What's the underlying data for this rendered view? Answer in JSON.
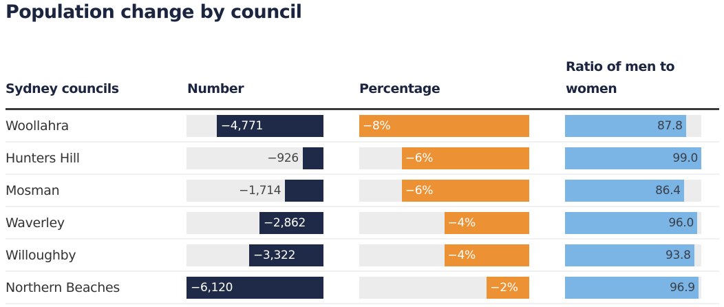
{
  "title": "Population change by council",
  "headers": {
    "council": "Sydney councils",
    "number": "Number",
    "percentage": "Percentage",
    "ratio": "Ratio of men to women"
  },
  "colors": {
    "number_bar": "#1f2a48",
    "percentage_bar": "#ec9235",
    "ratio_bar": "#7ab5e5",
    "track": "#ececec"
  },
  "rows": [
    {
      "council": "Woollahra",
      "number": -4771,
      "number_label": "−4,771",
      "percentage": -8,
      "percentage_label": "−8%",
      "ratio": 87.8,
      "ratio_label": "87.8"
    },
    {
      "council": "Hunters Hill",
      "number": -926,
      "number_label": "−926",
      "percentage": -6,
      "percentage_label": "−6%",
      "ratio": 99.0,
      "ratio_label": "99.0"
    },
    {
      "council": "Mosman",
      "number": -1714,
      "number_label": "−1,714",
      "percentage": -6,
      "percentage_label": "−6%",
      "ratio": 86.4,
      "ratio_label": "86.4"
    },
    {
      "council": "Waverley",
      "number": -2862,
      "number_label": "−2,862",
      "percentage": -4,
      "percentage_label": "−4%",
      "ratio": 96.0,
      "ratio_label": "96.0"
    },
    {
      "council": "Willoughby",
      "number": -3322,
      "number_label": "−3,322",
      "percentage": -4,
      "percentage_label": "−4%",
      "ratio": 93.8,
      "ratio_label": "93.8"
    },
    {
      "council": "Northern Beaches",
      "number": -6120,
      "number_label": "−6,120",
      "percentage": -2,
      "percentage_label": "−2%",
      "ratio": 96.9,
      "ratio_label": "96.9"
    }
  ],
  "chart_data": {
    "type": "table",
    "title": "Population change by council",
    "columns": [
      "Sydney councils",
      "Number",
      "Percentage",
      "Ratio of men to women"
    ],
    "categories": [
      "Woollahra",
      "Hunters Hill",
      "Mosman",
      "Waverley",
      "Willoughby",
      "Northern Beaches"
    ],
    "series": [
      {
        "name": "Number",
        "values": [
          -4771,
          -926,
          -1714,
          -2862,
          -3322,
          -6120
        ],
        "scale_max_abs": 6120
      },
      {
        "name": "Percentage",
        "values": [
          -8,
          -6,
          -6,
          -4,
          -4,
          -2
        ],
        "unit": "%",
        "scale_max_abs": 8
      },
      {
        "name": "Ratio of men to women",
        "values": [
          87.8,
          99.0,
          86.4,
          96.0,
          93.8,
          96.9
        ],
        "scale_max": 99.0
      }
    ]
  }
}
